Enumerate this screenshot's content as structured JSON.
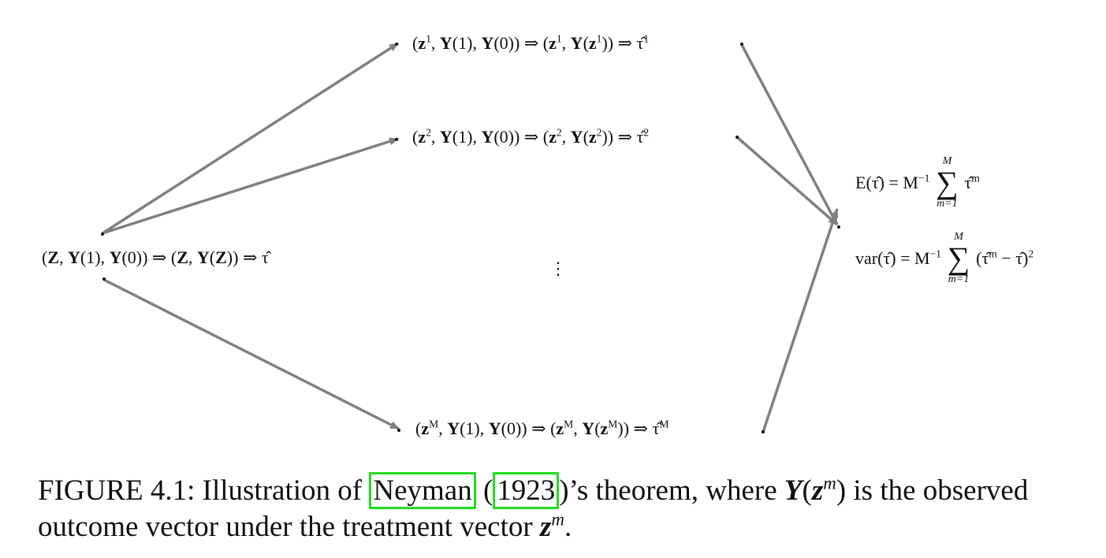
{
  "diagram": {
    "source": {
      "open": "(",
      "Z": "Z",
      "Y1": "Y",
      "one": "(1), ",
      "Y0": "Y",
      "zero": "(0)) ⇒ (",
      "Z2": "Z",
      "sep": ", ",
      "YZ": "Y",
      "paren": "(",
      "Z3": "Z",
      "close": ")) ⇒ τ̂"
    },
    "branches": [
      {
        "label": "1"
      },
      {
        "label": "2"
      },
      {
        "label": "M"
      }
    ],
    "vdots": "⋮",
    "result": {
      "mean_lhs": "E(τ̂) = M",
      "mean_exp": "−1",
      "mean_rhs": "τ̂",
      "mean_rhs_sup": "m",
      "var_lhs": "var(τ̂) = M",
      "var_exp": "−1",
      "var_rhs": "(τ̂",
      "var_rhs_sup": "m",
      "var_rhs_tail": " − τ̂)",
      "var_rhs_pow": "2",
      "sum_upper": "M",
      "sum_lower": "m=1",
      "sigma": "∑"
    },
    "colors": {
      "arrow": "#808080",
      "ref_box": "#22dd22"
    }
  },
  "caption": {
    "prefix": "FIGURE 4.1: Illustration of ",
    "ref_name": "Neyman",
    "paren_open": " (",
    "ref_year": "1923",
    "after_ref": ")’s theorem, where ",
    "math_Y": "Y",
    "math_open": "(",
    "math_z": "z",
    "math_sup": "m",
    "math_close": ")",
    "middle": " is the observed outcome vector under the treatment vector ",
    "math_z2": "z",
    "math_sup2": "m",
    "end": "."
  }
}
